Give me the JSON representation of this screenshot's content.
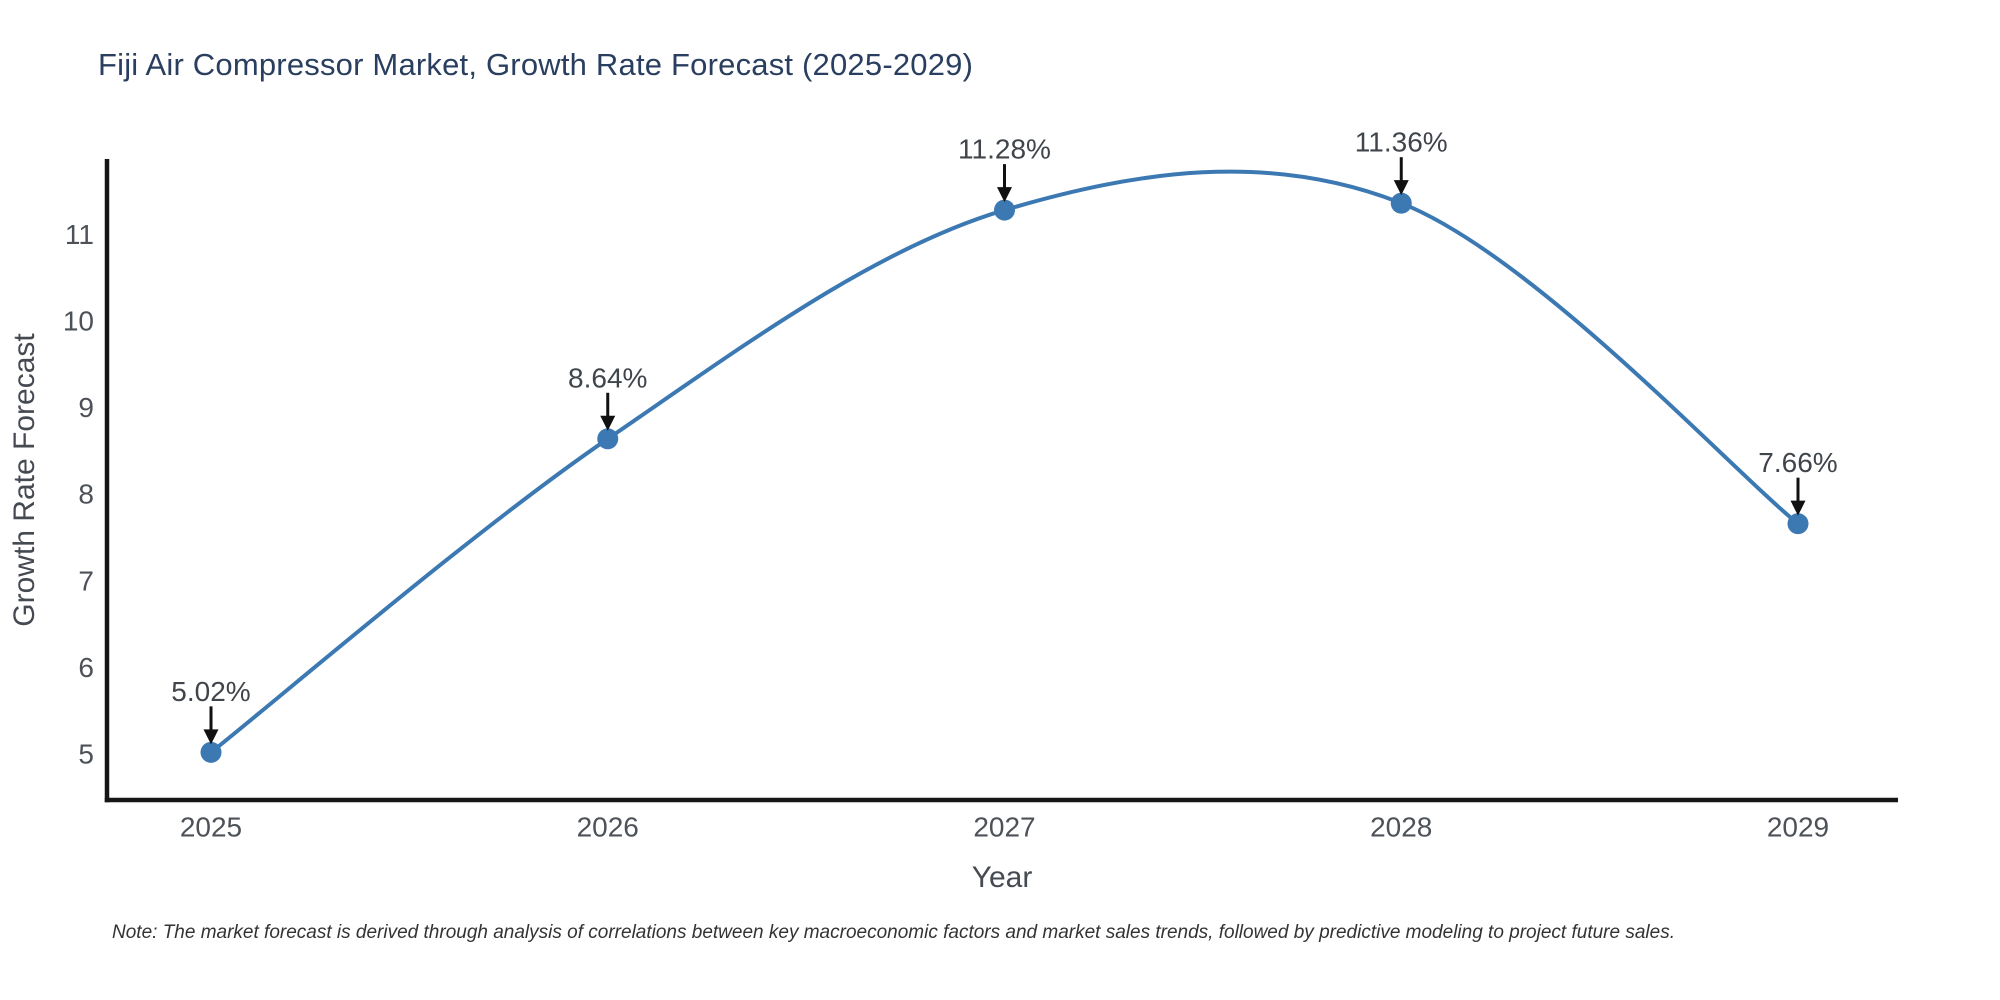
{
  "chart_data": {
    "type": "line",
    "title": "Fiji Air Compressor Market, Growth Rate Forecast (2025-2029)",
    "xlabel": "Year",
    "ylabel": "Growth Rate Forecast",
    "categories": [
      "2025",
      "2026",
      "2027",
      "2028",
      "2029"
    ],
    "series": [
      {
        "name": "Growth Rate Forecast",
        "values": [
          5.02,
          8.64,
          11.28,
          11.36,
          7.66
        ],
        "point_labels": [
          "5.02%",
          "8.64%",
          "11.28%",
          "11.36%",
          "7.66%"
        ]
      }
    ],
    "line_shape": "spline",
    "markers": true,
    "grid": false,
    "legend": "none",
    "yticks": [
      5,
      6,
      7,
      8,
      9,
      10,
      11
    ],
    "ylim": [
      4.47,
      11.87
    ],
    "annotation_arrows": "down",
    "colors": {
      "line": "#3c79b3",
      "marker": "#3c79b3",
      "axis": "#161616",
      "title": "#2a3f5f",
      "tick_label": "#4d5259",
      "axis_title": "#454a52",
      "annotation": "#40454c",
      "arrow": "#111111",
      "note": "#333333",
      "background": "#ffffff"
    }
  },
  "note": "Note: The market forecast is derived through analysis of correlations between key macroeconomic factors and market sales trends, followed by predictive modeling to project future sales."
}
